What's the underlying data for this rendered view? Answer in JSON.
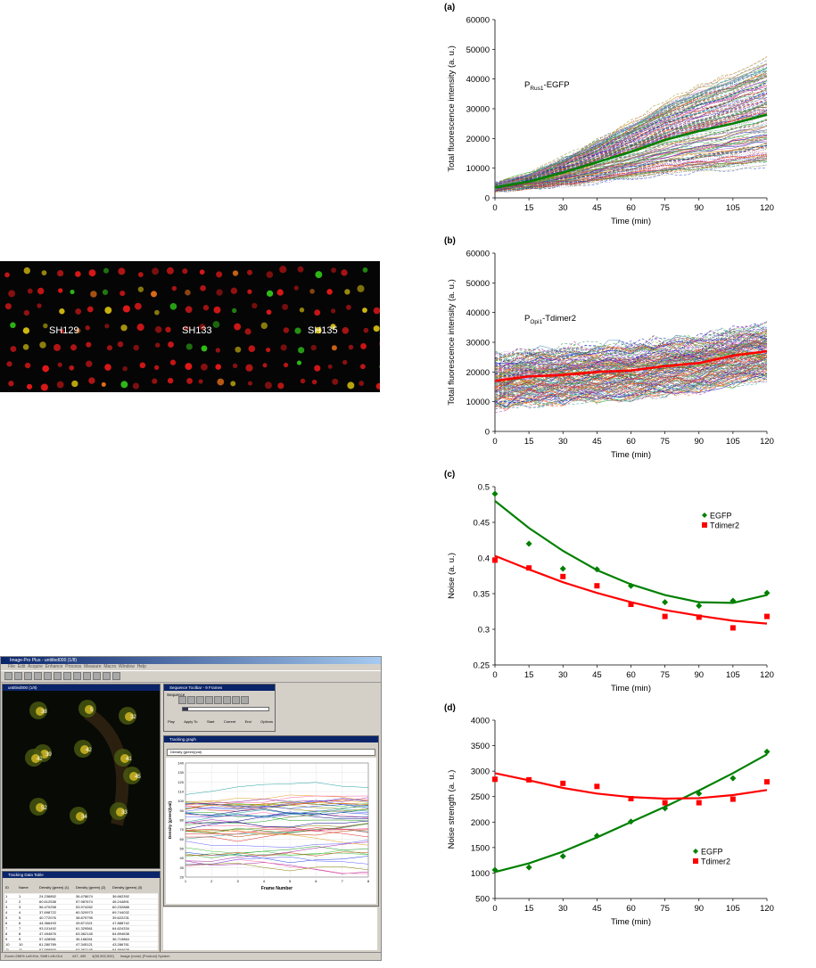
{
  "microscopy": {
    "strains": [
      "SH129",
      "SH133",
      "SH135"
    ]
  },
  "software": {
    "title": "Image-Pro Plus - untitled000 (1/8)",
    "menu": [
      "File",
      "Edit",
      "Acquire",
      "Enhance",
      "Process",
      "Measure",
      "Macro",
      "Window",
      "Help"
    ],
    "image_window_title": "untitled000 (1/8)",
    "sequence_title": "Sequence Toolbar - 9 Frames",
    "sequence_label": "Sequence",
    "sequence_buttons": [
      "Play",
      "Apply To",
      "Start",
      "Current",
      "End",
      "Options"
    ],
    "graph_title": "Tracking graph",
    "graph_dropdown": "Density (green)(val)",
    "graph_ylabel": "Density (green)(val)",
    "graph_xlabel": "Frame Number",
    "graph_yticks": [
      "140",
      "130",
      "120",
      "110",
      "100",
      "90",
      "80",
      "70",
      "60",
      "50",
      "40",
      "30",
      "20"
    ],
    "graph_xticks": [
      "1",
      "2",
      "3",
      "4",
      "5",
      "6",
      "7",
      "8"
    ],
    "table_title": "Tracking Data Table",
    "table_headers": [
      "ID",
      "Name",
      "Density (green) (1)",
      "Density (green) (2)",
      "Density (green) (3)"
    ],
    "table_rows": [
      [
        "1",
        "1",
        "24.236852",
        "36.478674",
        "36.662392"
      ],
      [
        "2",
        "2",
        "60.612538",
        "57.987674",
        "46.244891"
      ],
      [
        "3",
        "3",
        "56.470258",
        "53.974262",
        "60.232888"
      ],
      [
        "4",
        "4",
        "37.698722",
        "60.320973",
        "69.744032"
      ],
      [
        "5",
        "5",
        "40.772076",
        "38.875795",
        "39.622231"
      ],
      [
        "6",
        "6",
        "44.366493",
        "49.871321",
        "47.888742"
      ],
      [
        "7",
        "7",
        "93.101492",
        "61.329561",
        "64.624334"
      ],
      [
        "8",
        "8",
        "47.494876",
        "63.362145",
        "64.894638"
      ],
      [
        "9",
        "9",
        "57.428981",
        "36.166261",
        "36.719864"
      ],
      [
        "10",
        "10",
        "61.280789",
        "47.345121",
        "43.286761"
      ],
      [
        "11",
        "11",
        "67.588900",
        "63.362145",
        "64.894638"
      ],
      [
        "12",
        "12",
        "96.889882",
        "77.786298",
        "66.484888"
      ]
    ],
    "status_zoom": "Zoom=266% Left:Hm, Shift Left=Out",
    "status_coords": "447, 490",
    "status_values": "4(50,592,592)",
    "status_mode": "Image (none) (Product) System"
  },
  "chart_data": [
    {
      "panel": "(a)",
      "type": "line",
      "annotation": "P_Rus1-EGFP",
      "xlabel": "Time (min)",
      "ylabel": "Total fluorescence intensity (a. u.)",
      "xlim": [
        0,
        120
      ],
      "ylim": [
        0,
        60000
      ],
      "xticks": [
        0,
        15,
        30,
        45,
        60,
        75,
        90,
        105,
        120
      ],
      "yticks": [
        0,
        10000,
        20000,
        30000,
        40000,
        50000,
        60000
      ],
      "x": [
        0,
        15,
        30,
        45,
        60,
        75,
        90,
        105,
        120
      ],
      "mean_series": {
        "color": "#008000",
        "values": [
          3500,
          5500,
          8500,
          12000,
          15500,
          19500,
          22500,
          25000,
          28000
        ]
      },
      "n_traces": 180
    },
    {
      "panel": "(b)",
      "type": "line",
      "annotation": "P_Opi1-Tdimer2",
      "xlabel": "Time (min)",
      "ylabel": "Total fluorescence intensity (a. u.)",
      "xlim": [
        0,
        120
      ],
      "ylim": [
        0,
        60000
      ],
      "xticks": [
        0,
        15,
        30,
        45,
        60,
        75,
        90,
        105,
        120
      ],
      "yticks": [
        0,
        10000,
        20000,
        30000,
        40000,
        50000,
        60000
      ],
      "x": [
        0,
        15,
        30,
        45,
        60,
        75,
        90,
        105,
        120
      ],
      "mean_series": {
        "color": "#ff0000",
        "values": [
          17000,
          18500,
          19000,
          20000,
          20500,
          22000,
          23000,
          25500,
          27000
        ]
      },
      "n_traces": 180
    },
    {
      "panel": "(c)",
      "type": "scatter",
      "xlabel": "Time (min)",
      "ylabel": "Noise (a. u.)",
      "xlim": [
        0,
        120
      ],
      "ylim": [
        0.25,
        0.5
      ],
      "xticks": [
        0,
        15,
        30,
        45,
        60,
        75,
        90,
        105,
        120
      ],
      "yticks": [
        0.25,
        0.3,
        0.35,
        0.4,
        0.45,
        0.5
      ],
      "ytick_labels": [
        "0.25",
        "0.3",
        "0.35",
        "0.4",
        "0.45",
        "0.5"
      ],
      "legend_position": "right",
      "x": [
        0,
        15,
        30,
        45,
        60,
        75,
        90,
        105,
        120
      ],
      "series": [
        {
          "name": "EGFP",
          "marker": "diamond",
          "color": "#008000",
          "values": [
            0.49,
            0.42,
            0.385,
            0.384,
            0.361,
            0.338,
            0.333,
            0.34,
            0.351
          ],
          "fit": [
            0.48,
            0.442,
            0.41,
            0.383,
            0.363,
            0.348,
            0.338,
            0.337,
            0.348
          ]
        },
        {
          "name": "Tdimer2",
          "marker": "square",
          "color": "#ff0000",
          "values": [
            0.397,
            0.386,
            0.374,
            0.361,
            0.335,
            0.318,
            0.317,
            0.302,
            0.318
          ],
          "fit": [
            0.403,
            0.384,
            0.366,
            0.351,
            0.338,
            0.327,
            0.319,
            0.312,
            0.308
          ]
        }
      ]
    },
    {
      "panel": "(d)",
      "type": "scatter",
      "xlabel": "Time (min)",
      "ylabel": "Noise strength (a. u.)",
      "xlim": [
        0,
        120
      ],
      "ylim": [
        500,
        4000
      ],
      "xticks": [
        0,
        15,
        30,
        45,
        60,
        75,
        90,
        105,
        120
      ],
      "yticks": [
        500,
        1000,
        1500,
        2000,
        2500,
        3000,
        3500,
        4000
      ],
      "ytick_labels": [
        "500",
        "1000",
        "1500",
        "2000",
        "2500",
        "3000",
        "3500",
        "4000"
      ],
      "legend_position": "bottom-right",
      "x": [
        0,
        15,
        30,
        45,
        60,
        75,
        90,
        105,
        120
      ],
      "series": [
        {
          "name": "EGFP",
          "marker": "diamond",
          "color": "#008000",
          "values": [
            1060,
            1110,
            1330,
            1730,
            2010,
            2270,
            2560,
            2860,
            3380
          ],
          "fit": [
            1020,
            1190,
            1420,
            1700,
            2000,
            2300,
            2620,
            2960,
            3330
          ]
        },
        {
          "name": "Tdimer2",
          "marker": "square",
          "color": "#ff0000",
          "values": [
            2840,
            2830,
            2760,
            2700,
            2460,
            2380,
            2380,
            2450,
            2790
          ],
          "fit": [
            2960,
            2820,
            2670,
            2560,
            2490,
            2460,
            2470,
            2530,
            2630
          ]
        }
      ]
    }
  ]
}
